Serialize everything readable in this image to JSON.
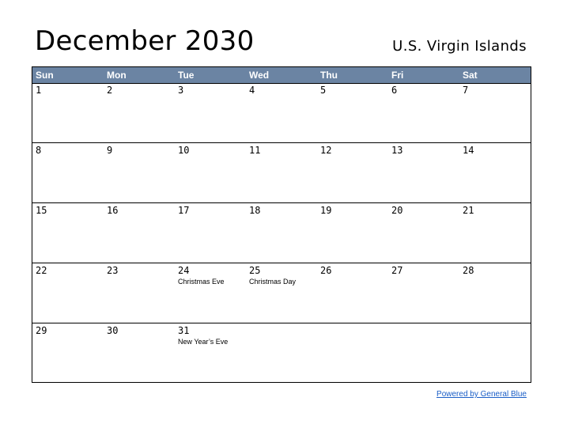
{
  "header": {
    "title": "December 2030",
    "region": "U.S. Virgin Islands"
  },
  "calendar": {
    "weekdays": [
      "Sun",
      "Mon",
      "Tue",
      "Wed",
      "Thu",
      "Fri",
      "Sat"
    ],
    "header_color": "#6b84a3",
    "weeks": [
      [
        {
          "date": "1"
        },
        {
          "date": "2"
        },
        {
          "date": "3"
        },
        {
          "date": "4"
        },
        {
          "date": "5"
        },
        {
          "date": "6"
        },
        {
          "date": "7"
        }
      ],
      [
        {
          "date": "8"
        },
        {
          "date": "9"
        },
        {
          "date": "10"
        },
        {
          "date": "11"
        },
        {
          "date": "12"
        },
        {
          "date": "13"
        },
        {
          "date": "14"
        }
      ],
      [
        {
          "date": "15"
        },
        {
          "date": "16"
        },
        {
          "date": "17"
        },
        {
          "date": "18"
        },
        {
          "date": "19"
        },
        {
          "date": "20"
        },
        {
          "date": "21"
        }
      ],
      [
        {
          "date": "22"
        },
        {
          "date": "23"
        },
        {
          "date": "24",
          "event": "Christmas Eve"
        },
        {
          "date": "25",
          "event": "Christmas Day"
        },
        {
          "date": "26"
        },
        {
          "date": "27"
        },
        {
          "date": "28"
        }
      ],
      [
        {
          "date": "29"
        },
        {
          "date": "30"
        },
        {
          "date": "31",
          "event": "New Year’s Eve"
        },
        {
          "date": ""
        },
        {
          "date": ""
        },
        {
          "date": ""
        },
        {
          "date": ""
        }
      ]
    ]
  },
  "footer": {
    "powered_by": "Powered by General Blue"
  }
}
